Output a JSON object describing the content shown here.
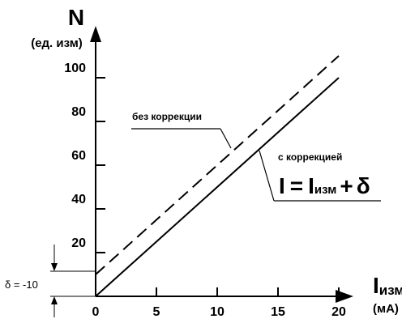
{
  "chart_data": {
    "type": "line",
    "y_axis": {
      "label": "N",
      "unit": "(ед. изм)",
      "ticks": [
        20,
        40,
        60,
        80,
        100
      ],
      "range": [
        0,
        100
      ]
    },
    "x_axis": {
      "label": "I",
      "label_subscript": "изм",
      "unit": "(мА)",
      "ticks": [
        0,
        5,
        10,
        15,
        20
      ],
      "range": [
        0,
        20
      ]
    },
    "series": [
      {
        "name": "без коррекции",
        "style": "dashed",
        "x": [
          0,
          20
        ],
        "y": [
          10,
          110
        ]
      },
      {
        "name": "с коррекцией",
        "style": "solid",
        "x": [
          0,
          20
        ],
        "y": [
          0,
          100
        ]
      }
    ],
    "formula": {
      "lhs": "I",
      "eq": "=",
      "sub_base": "I",
      "sub": "изм",
      "plus": "+",
      "rhs": "δ"
    },
    "offset_label": "δ = -10",
    "colors": {
      "line": "#000000",
      "background": "#ffffff"
    }
  }
}
